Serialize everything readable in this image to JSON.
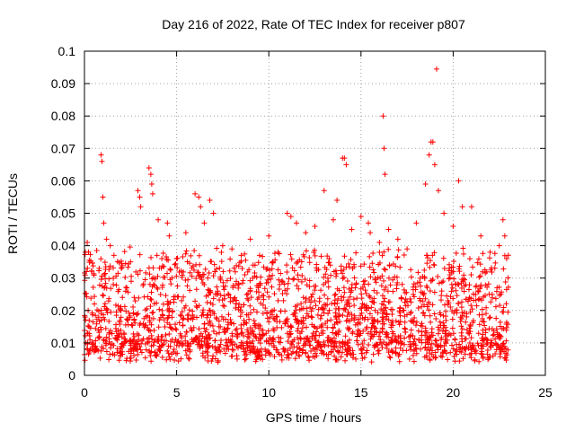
{
  "chart_data": {
    "type": "scatter",
    "title": "Day 216 of 2022, Rate Of TEC Index for receiver p807",
    "xlabel": "GPS time / hours",
    "ylabel": "ROTI / TECUs",
    "xlim": [
      0,
      25
    ],
    "ylim": [
      0,
      0.1
    ],
    "xticks": [
      0,
      5,
      10,
      15,
      20,
      25
    ],
    "yticks": [
      0,
      0.01,
      0.02,
      0.03,
      0.04,
      0.05,
      0.06,
      0.07,
      0.08,
      0.09,
      0.1
    ],
    "grid": true,
    "marker": "+",
    "color": "#ff0000",
    "series": [
      {
        "x": [
          0.05,
          0.1,
          0.15,
          0.2,
          0.25,
          0.3,
          0.9,
          0.95,
          1.0,
          1.05,
          1.2,
          1.4,
          1.6,
          2.0,
          2.5,
          2.9,
          3.0,
          3.05,
          3.5,
          3.6,
          3.65,
          3.7,
          4.0,
          4.5,
          4.6,
          5.0,
          5.5,
          6.0,
          6.2,
          6.3,
          6.5,
          6.8,
          7.0,
          7.5,
          8.0,
          8.5,
          9.0,
          9.5,
          10.0,
          10.5,
          11.0,
          11.2,
          11.5,
          12.0,
          12.5,
          13.0,
          13.5,
          13.7,
          14.0,
          14.1,
          14.2,
          14.5,
          15.0,
          15.4,
          15.5,
          16.0,
          16.2,
          16.25,
          16.3,
          16.5,
          17.0,
          17.5,
          18.0,
          18.5,
          18.7,
          18.8,
          18.9,
          19.0,
          19.1,
          19.2,
          19.5,
          20.0,
          20.3,
          20.5,
          21.0,
          21.5,
          22.0,
          22.5,
          22.7,
          22.8,
          22.9
        ],
        "y": [
          0.038,
          0.032,
          0.041,
          0.02,
          0.015,
          0.011,
          0.068,
          0.066,
          0.055,
          0.047,
          0.042,
          0.04,
          0.037,
          0.033,
          0.035,
          0.057,
          0.055,
          0.052,
          0.064,
          0.062,
          0.059,
          0.056,
          0.048,
          0.047,
          0.043,
          0.036,
          0.044,
          0.056,
          0.055,
          0.052,
          0.047,
          0.054,
          0.05,
          0.04,
          0.039,
          0.037,
          0.042,
          0.037,
          0.043,
          0.038,
          0.05,
          0.049,
          0.047,
          0.044,
          0.046,
          0.057,
          0.048,
          0.054,
          0.067,
          0.067,
          0.065,
          0.045,
          0.049,
          0.047,
          0.044,
          0.041,
          0.08,
          0.07,
          0.062,
          0.045,
          0.042,
          0.039,
          0.047,
          0.059,
          0.068,
          0.072,
          0.072,
          0.065,
          0.0945,
          0.057,
          0.05,
          0.046,
          0.06,
          0.052,
          0.052,
          0.043,
          0.038,
          0.04,
          0.048,
          0.043,
          0.036
        ]
      }
    ]
  }
}
